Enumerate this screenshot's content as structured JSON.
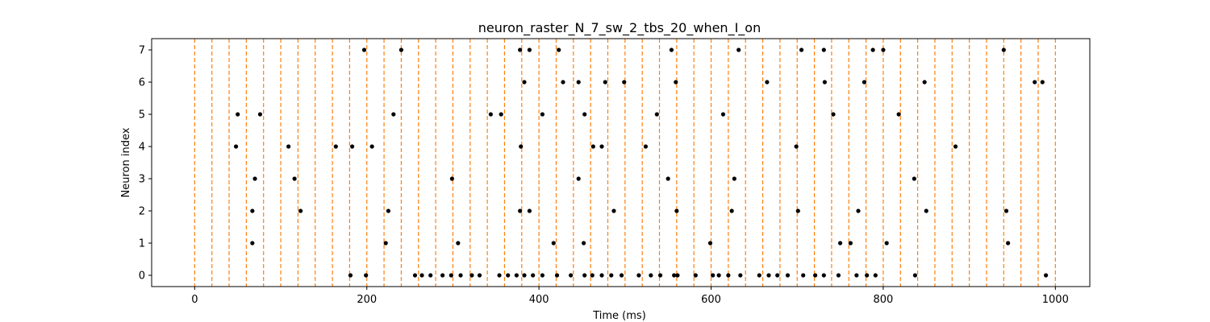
{
  "chart_data": {
    "type": "scatter",
    "title": "neuron_raster_N_7_sw_2_tbs_20_when_I_on",
    "xlabel": "Time (ms)",
    "ylabel": "Neuron index",
    "xlim": [
      -50,
      1040
    ],
    "ylim": [
      -0.35,
      7.35
    ],
    "xticks": [
      0,
      200,
      400,
      600,
      800,
      1000
    ],
    "yticks": [
      0,
      1,
      2,
      3,
      4,
      5,
      6,
      7
    ],
    "grid": false,
    "marker_color": "#000000",
    "vline_color": "#ff7f0e",
    "vlines": [
      0,
      20,
      40,
      60,
      80,
      100,
      120,
      140,
      160,
      180,
      200,
      220,
      240,
      260,
      280,
      300,
      320,
      340,
      360,
      380,
      400,
      420,
      440,
      460,
      480,
      500,
      520,
      540,
      560,
      580,
      600,
      620,
      640,
      660,
      680,
      700,
      720,
      740,
      760,
      780,
      800,
      820,
      840,
      860,
      880,
      900,
      920,
      940,
      960,
      980,
      1000
    ],
    "series": [
      {
        "neuron": 0,
        "x": [
          181,
          199,
          256,
          264,
          274,
          288,
          298,
          309,
          322,
          331,
          354,
          364,
          374,
          383,
          393,
          404,
          421,
          437,
          453,
          462,
          473,
          484,
          496,
          516,
          530,
          541,
          557,
          561,
          582,
          602,
          609,
          620,
          634,
          656,
          667,
          677,
          689,
          707,
          721,
          731,
          748,
          769,
          781,
          791,
          837,
          989
        ]
      },
      {
        "neuron": 1,
        "x": [
          67,
          222,
          306,
          417,
          452,
          599,
          750,
          762,
          804,
          945
        ]
      },
      {
        "neuron": 2,
        "x": [
          67,
          123,
          225,
          378,
          389,
          487,
          560,
          624,
          701,
          771,
          850,
          943
        ]
      },
      {
        "neuron": 3,
        "x": [
          70,
          116,
          299,
          446,
          550,
          627,
          836
        ]
      },
      {
        "neuron": 4,
        "x": [
          48,
          109,
          164,
          183,
          206,
          379,
          463,
          473,
          524,
          699,
          884
        ]
      },
      {
        "neuron": 5,
        "x": [
          50,
          76,
          231,
          344,
          356,
          404,
          453,
          537,
          614,
          742,
          818
        ]
      },
      {
        "neuron": 6,
        "x": [
          383,
          428,
          446,
          477,
          499,
          559,
          665,
          732,
          778,
          848,
          976,
          985
        ]
      },
      {
        "neuron": 7,
        "x": [
          197,
          240,
          378,
          389,
          423,
          554,
          632,
          705,
          731,
          788,
          800,
          940
        ]
      }
    ]
  }
}
